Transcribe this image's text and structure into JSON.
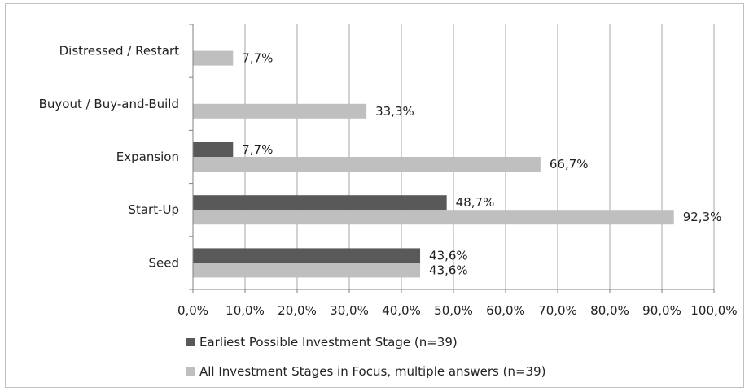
{
  "colors": {
    "earliest": "#595959",
    "all": "#bfbfbf",
    "grid": "#a6a6a6",
    "axis": "#808080"
  },
  "chart_data": {
    "type": "bar",
    "orientation": "horizontal",
    "categories": [
      "Seed",
      "Start-Up",
      "Expansion",
      "Buyout / Buy-and-Build",
      "Distressed / Restart"
    ],
    "series": [
      {
        "name": "Earliest Possible Investment Stage (n=39)",
        "values": [
          43.6,
          48.7,
          7.7,
          null,
          null
        ],
        "labels": [
          "43,6%",
          "48,7%",
          "7,7%",
          "",
          ""
        ]
      },
      {
        "name": "All Investment Stages in Focus, multiple answers (n=39)",
        "values": [
          43.6,
          92.3,
          66.7,
          33.3,
          7.7
        ],
        "labels": [
          "43,6%",
          "92,3%",
          "66,7%",
          "33,3%",
          "7,7%"
        ]
      }
    ],
    "xlim": [
      0,
      100
    ],
    "xticks": [
      0,
      10,
      20,
      30,
      40,
      50,
      60,
      70,
      80,
      90,
      100
    ],
    "xtick_labels": [
      "0,0%",
      "10,0%",
      "20,0%",
      "30,0%",
      "40,0%",
      "50,0%",
      "60,0%",
      "70,0%",
      "80,0%",
      "90,0%",
      "100,0%"
    ],
    "grid": true,
    "legend": "bottom"
  }
}
